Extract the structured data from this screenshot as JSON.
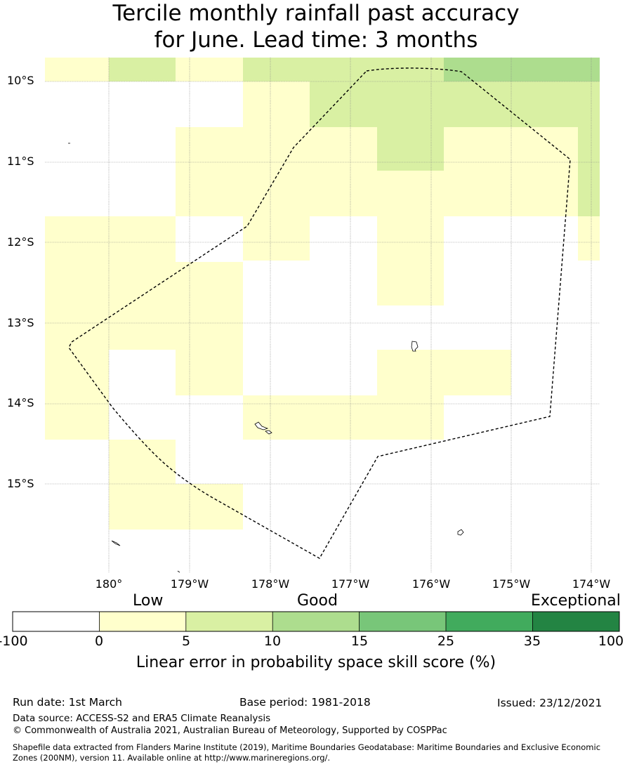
{
  "title": {
    "line1": "Tercile monthly rainfall past accuracy",
    "line2": "for June. Lead time: 3 months"
  },
  "map": {
    "latitude_labels": [
      "10°S",
      "11°S",
      "12°S",
      "13°S",
      "14°S",
      "15°S"
    ],
    "longitude_labels": [
      "180°",
      "179°W",
      "178°W",
      "177°W",
      "176°W",
      "175°W",
      "174°W"
    ]
  },
  "colorbar": {
    "categories": [
      "Low",
      "Good",
      "Exceptional"
    ],
    "ticks": [
      "-100",
      "0",
      "5",
      "10",
      "15",
      "25",
      "35",
      "100"
    ],
    "colors": [
      "#ffffff",
      "#ffffcc",
      "#d9f0a3",
      "#addd8e",
      "#78c679",
      "#41ab5d",
      "#238443"
    ],
    "title": "Linear error in probability space skill score (%)"
  },
  "footer": {
    "run_date": "Run date: 1st March",
    "base_period": "Base period: 1981-2018",
    "issued": "Issued: 23/12/2021",
    "data_source": "Data source: ACCESS-S2 and ERA5 Climate Reanalysis",
    "copyright": "© Commonwealth of Australia 2021, Australian Bureau of Meteorology, Supported by COSPPac",
    "shapefile_line1": "Shapefile data extracted from Flanders Marine Institute (2019), Maritime Boundaries Geodatabase: Maritime Boundaries and Exclusive Economic",
    "shapefile_line2": "Zones (200NM), version 11. Available online at http://www.marineregions.org/."
  }
}
